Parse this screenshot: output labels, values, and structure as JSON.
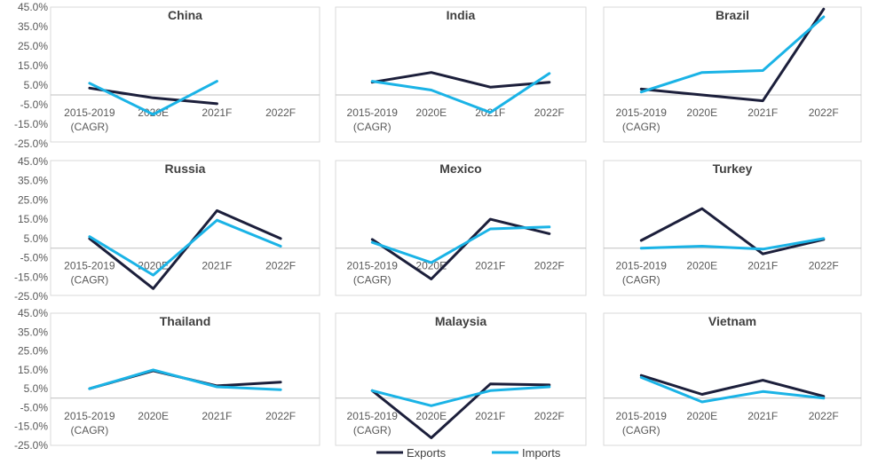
{
  "chart_data": {
    "type": "line",
    "layout": "3x3 small multiples",
    "x": [
      "2015-2019 (CAGR)",
      "2020E",
      "2021F",
      "2022F"
    ],
    "x_tick_lines": [
      [
        "2015-2019",
        "(CAGR)"
      ],
      [
        "2020E"
      ],
      [
        "2021F"
      ],
      [
        "2022F"
      ]
    ],
    "y_ticks": [
      "45.0%",
      "35.0%",
      "25.0%",
      "15.0%",
      "5.0%",
      "-5.0%",
      "-15.0%",
      "-25.0%"
    ],
    "ylim": [
      -25,
      45
    ],
    "y_axis_shown_on_left_column": true,
    "grid": false,
    "legend_position": "bottom-center",
    "series_colors": {
      "Exports": "#1c1f3b",
      "Imports": "#1ab3e6"
    },
    "legend": [
      "Exports",
      "Imports"
    ],
    "panels": [
      {
        "title": "China",
        "series": [
          {
            "name": "Exports",
            "values": [
              3.5,
              -1.5,
              -4.5,
              null
            ]
          },
          {
            "name": "Imports",
            "values": [
              6.0,
              -10.0,
              7.0,
              null
            ]
          }
        ]
      },
      {
        "title": "India",
        "series": [
          {
            "name": "Exports",
            "values": [
              6.5,
              11.5,
              4.0,
              6.5
            ]
          },
          {
            "name": "Imports",
            "values": [
              7.0,
              2.5,
              -9.0,
              11.0
            ]
          }
        ]
      },
      {
        "title": "Brazil",
        "series": [
          {
            "name": "Exports",
            "values": [
              3.0,
              0.0,
              -3.0,
              44.0
            ]
          },
          {
            "name": "Imports",
            "values": [
              1.5,
              11.5,
              12.5,
              40.0
            ]
          }
        ]
      },
      {
        "title": "Russia",
        "series": [
          {
            "name": "Exports",
            "values": [
              5.0,
              -21.0,
              19.5,
              5.0
            ]
          },
          {
            "name": "Imports",
            "values": [
              6.0,
              -14.0,
              14.5,
              1.0
            ]
          }
        ]
      },
      {
        "title": "Mexico",
        "series": [
          {
            "name": "Exports",
            "values": [
              4.5,
              -16.0,
              15.0,
              7.5
            ]
          },
          {
            "name": "Imports",
            "values": [
              3.0,
              -7.5,
              10.0,
              11.0
            ]
          }
        ]
      },
      {
        "title": "Turkey",
        "series": [
          {
            "name": "Exports",
            "values": [
              4.0,
              20.5,
              -3.0,
              4.5
            ]
          },
          {
            "name": "Imports",
            "values": [
              0.0,
              1.0,
              -0.5,
              5.0
            ]
          }
        ]
      },
      {
        "title": "Thailand",
        "series": [
          {
            "name": "Exports",
            "values": [
              5.0,
              14.5,
              6.5,
              8.5
            ]
          },
          {
            "name": "Imports",
            "values": [
              5.0,
              15.0,
              6.0,
              4.5
            ]
          }
        ]
      },
      {
        "title": "Malaysia",
        "series": [
          {
            "name": "Exports",
            "values": [
              4.0,
              -21.0,
              7.5,
              7.0
            ]
          },
          {
            "name": "Imports",
            "values": [
              4.0,
              -4.0,
              4.0,
              6.0
            ]
          }
        ]
      },
      {
        "title": "Vietnam",
        "series": [
          {
            "name": "Exports",
            "values": [
              12.0,
              2.0,
              9.5,
              1.0
            ]
          },
          {
            "name": "Imports",
            "values": [
              11.0,
              -2.0,
              3.5,
              0.0
            ]
          }
        ]
      }
    ]
  }
}
